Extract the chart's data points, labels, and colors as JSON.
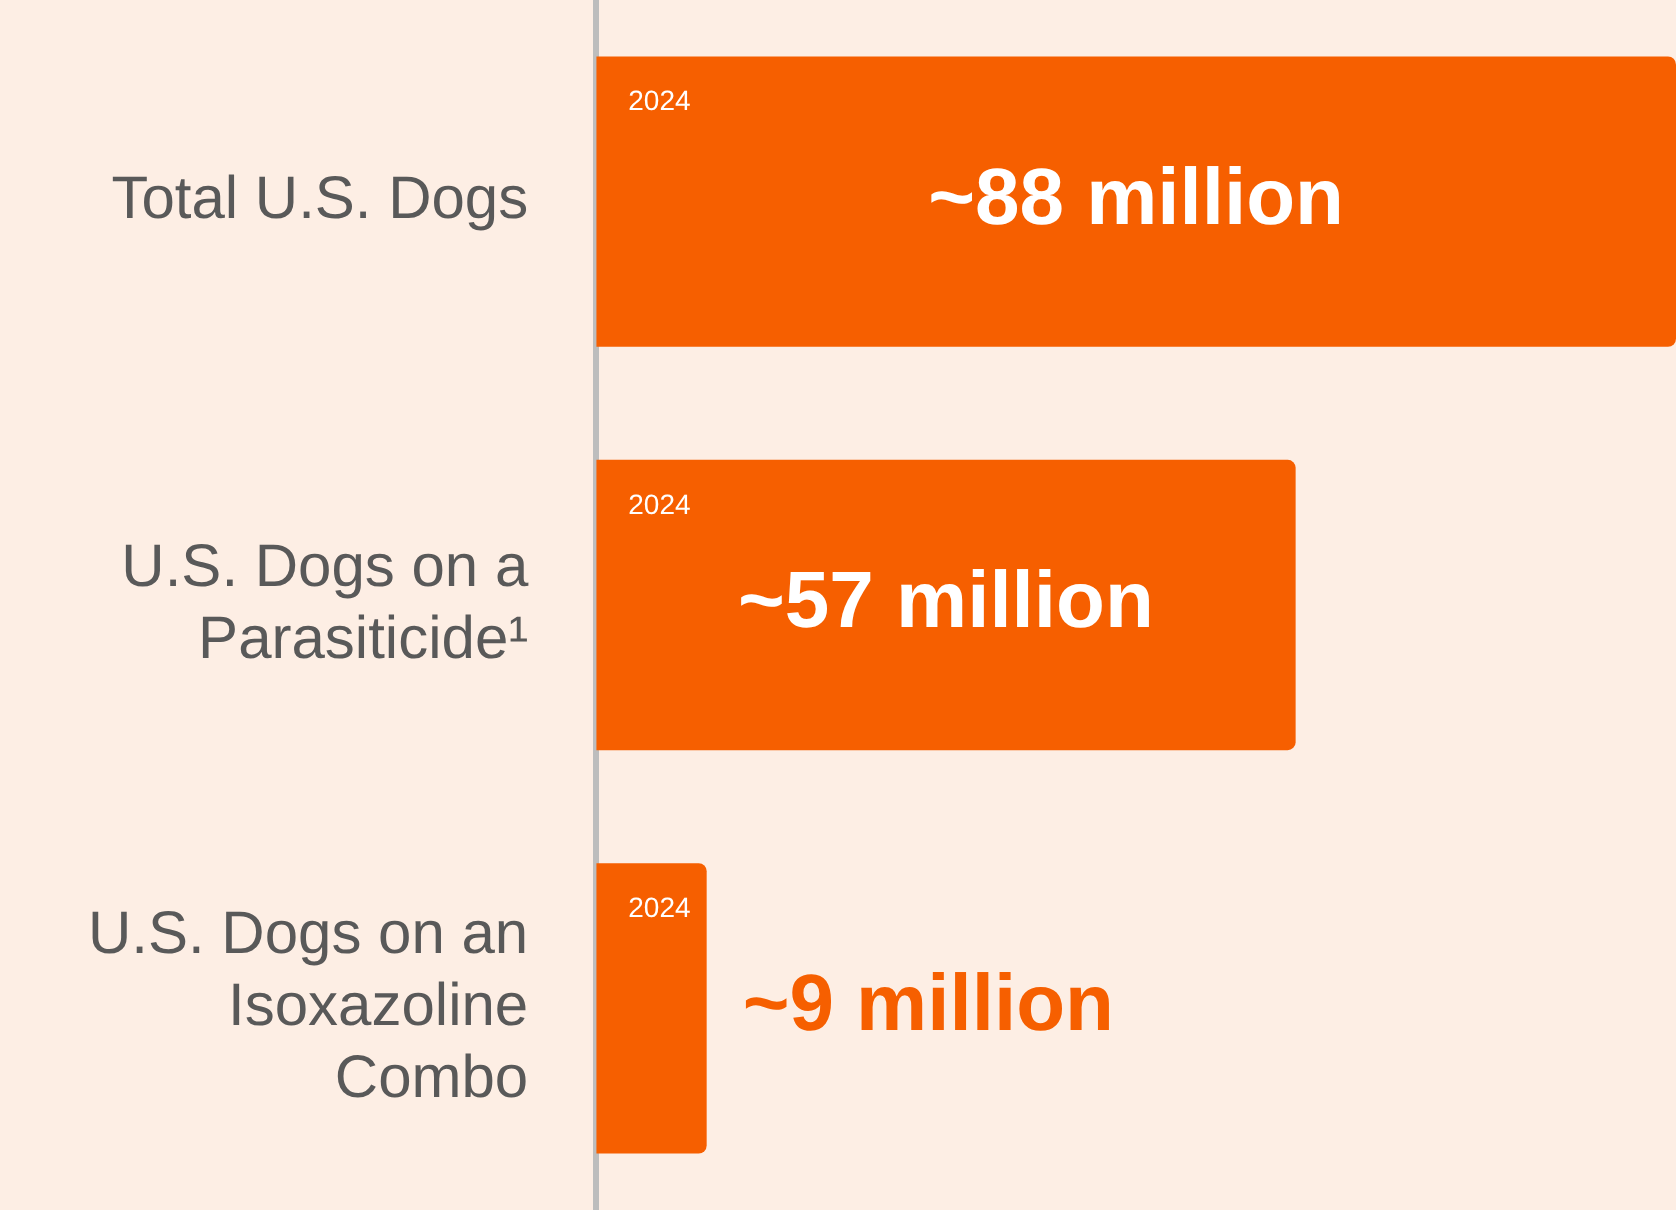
{
  "chart_data": {
    "type": "bar",
    "orientation": "horizontal",
    "categories": [
      "Total U.S. Dogs",
      "U.S. Dogs on a\nParasiticide¹",
      "U.S. Dogs on an\nIsoxazoline\nCombo"
    ],
    "values": [
      88,
      57,
      9
    ],
    "color": "#f65f00",
    "value_labels": [
      "~88 million",
      "~57 million",
      "~9 million"
    ],
    "annotations": [
      "2024",
      "2024",
      "2024"
    ],
    "legend": false,
    "grid": false,
    "tick_labels": "y"
  }
}
